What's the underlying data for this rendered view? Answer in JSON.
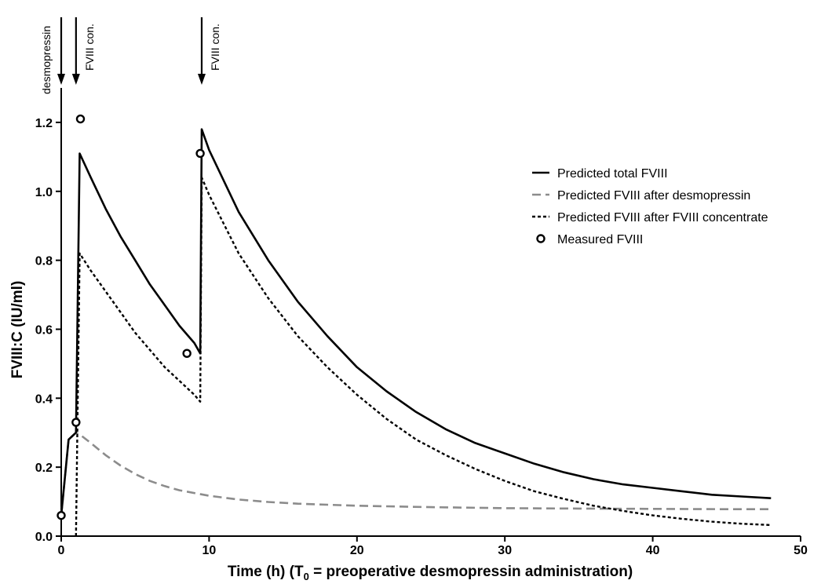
{
  "chart_data": {
    "type": "line",
    "xlabel_prefix": "Time (h) (T",
    "xlabel_sub": "0",
    "xlabel_suffix": " = preoperative desmopressin administration)",
    "ylabel": "FVIII:C (IU/ml)",
    "xlim": [
      0,
      50
    ],
    "ylim": [
      0,
      1.3
    ],
    "xticks": [
      0,
      10,
      20,
      30,
      40,
      50
    ],
    "yticks": [
      0.0,
      0.2,
      0.4,
      0.6,
      0.8,
      1.0,
      1.2
    ],
    "ytick_labels": [
      "0.0",
      "0.2",
      "0.4",
      "0.6",
      "0.8",
      "1.0",
      "1.2"
    ],
    "grid": false,
    "legend_position": "right",
    "annotations": [
      {
        "label": "desmopressin",
        "x": 0
      },
      {
        "label": "FVIII con.",
        "x": 1
      },
      {
        "label": "FVIII con.",
        "x": 9.5
      }
    ],
    "series": [
      {
        "name": "Predicted total FVIII",
        "color": "#000000",
        "style": "solid",
        "x": [
          0,
          0.5,
          1.0,
          1.25,
          2,
          3,
          4,
          5,
          6,
          7,
          8,
          9,
          9.4,
          9.5,
          10,
          12,
          14,
          16,
          18,
          20,
          22,
          24,
          26,
          28,
          30,
          32,
          34,
          36,
          38,
          40,
          42,
          44,
          46,
          48
        ],
        "y": [
          0.06,
          0.28,
          0.3,
          1.11,
          1.04,
          0.95,
          0.87,
          0.8,
          0.73,
          0.67,
          0.61,
          0.56,
          0.53,
          1.18,
          1.12,
          0.94,
          0.8,
          0.68,
          0.58,
          0.49,
          0.42,
          0.36,
          0.31,
          0.27,
          0.24,
          0.21,
          0.185,
          0.165,
          0.15,
          0.14,
          0.13,
          0.12,
          0.115,
          0.11
        ]
      },
      {
        "name": "Predicted FVIII after desmopressin",
        "color": "#8c8c8c",
        "style": "dashed",
        "x": [
          0,
          0.5,
          1.0,
          1.25,
          2,
          3,
          4,
          5,
          6,
          7,
          8,
          10,
          12,
          14,
          16,
          18,
          20,
          25,
          30,
          35,
          40,
          45,
          48
        ],
        "y": [
          0.06,
          0.28,
          0.3,
          0.295,
          0.27,
          0.235,
          0.205,
          0.18,
          0.16,
          0.145,
          0.133,
          0.117,
          0.106,
          0.099,
          0.094,
          0.091,
          0.088,
          0.084,
          0.081,
          0.08,
          0.079,
          0.078,
          0.078
        ]
      },
      {
        "name": "Predicted FVIII after FVIII concentrate",
        "color": "#000000",
        "style": "dotted",
        "x": [
          1.0,
          1.25,
          2,
          3,
          4,
          5,
          6,
          7,
          8,
          9,
          9.4,
          9.5,
          10,
          12,
          14,
          16,
          18,
          20,
          22,
          24,
          26,
          28,
          30,
          32,
          34,
          36,
          38,
          40,
          42,
          44,
          46,
          48
        ],
        "y": [
          0.0,
          0.82,
          0.77,
          0.71,
          0.65,
          0.59,
          0.54,
          0.49,
          0.45,
          0.41,
          0.39,
          1.04,
          0.99,
          0.82,
          0.69,
          0.58,
          0.49,
          0.41,
          0.34,
          0.28,
          0.235,
          0.195,
          0.16,
          0.13,
          0.108,
          0.088,
          0.073,
          0.06,
          0.05,
          0.042,
          0.036,
          0.032
        ]
      },
      {
        "name": "Measured FVIII",
        "color": "#000000",
        "style": "marker",
        "x": [
          0,
          1.0,
          1.3,
          8.5,
          9.4
        ],
        "y": [
          0.06,
          0.33,
          1.21,
          0.53,
          1.11
        ]
      }
    ]
  }
}
